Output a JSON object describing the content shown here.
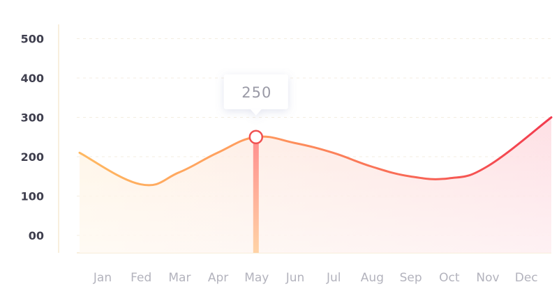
{
  "chart_data": {
    "type": "area",
    "title": "",
    "xlabel": "",
    "ylabel": "",
    "categories": [
      "Jan",
      "Fed",
      "Mar",
      "Apr",
      "May",
      "Jun",
      "Jul",
      "Aug",
      "Sep",
      "Oct",
      "Nov",
      "Dec"
    ],
    "y_ticks": [
      "00",
      "100",
      "200",
      "300",
      "400",
      "500"
    ],
    "y_tick_values": [
      0,
      100,
      200,
      300,
      400,
      500
    ],
    "ylim": [
      -50,
      500
    ],
    "grid": true,
    "series": [
      {
        "name": "",
        "values": [
          210,
          130,
          160,
          210,
          250,
          235,
          210,
          175,
          150,
          145,
          175,
          280
        ]
      }
    ],
    "highlight": {
      "category": "May",
      "value": 250,
      "label": "250"
    },
    "colors": {
      "line_start": "#ffb861",
      "line_end": "#f23a4e",
      "fill_start": "#fff1dc",
      "fill_end": "#fdd8de",
      "marker_stroke": "#f05151",
      "grid": "#f3ede0",
      "axis": "#f6ead2"
    }
  }
}
